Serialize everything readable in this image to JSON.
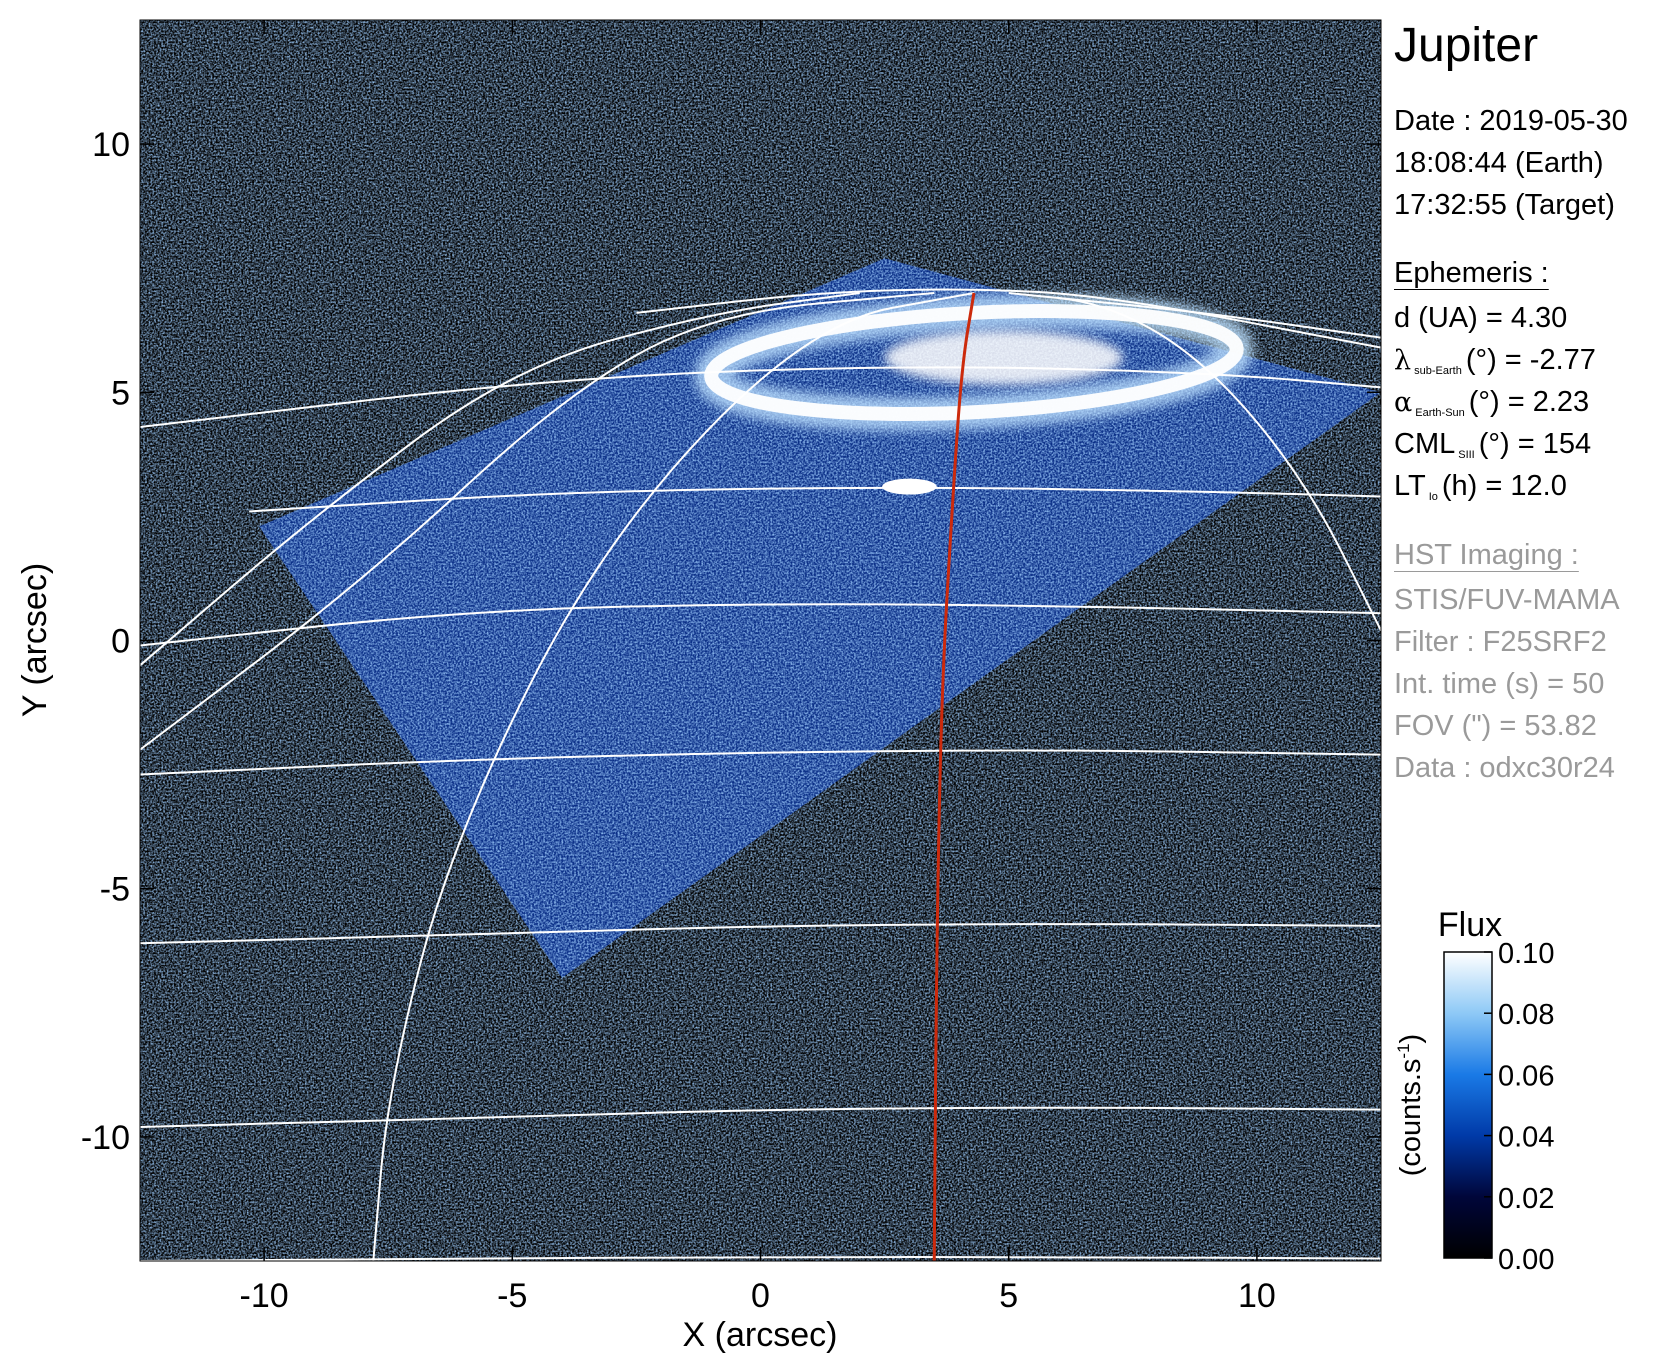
{
  "info": {
    "planet": "Jupiter",
    "date_label": "Date : 2019-05-30",
    "time_earth": "18:08:44 (Earth)",
    "time_target": "17:32:55 (Target)",
    "ephemeris_header": "Ephemeris :",
    "distance": "d (UA)    = 4.30",
    "lambda_symbol": "λ",
    "lambda_sub": "sub-Earth",
    "lambda_rest": "(°) = -2.77",
    "alpha_symbol": "α",
    "alpha_sub": "Earth-Sun",
    "alpha_rest": "(°) = 2.23",
    "cml_main": "CML",
    "cml_sub": "SIII",
    "cml_rest": "(°) = 154",
    "lt_main": "LT",
    "lt_sub": "Io",
    "lt_rest": "(h) = 12.0",
    "hst_header": "HST Imaging :",
    "instrument": "STIS/FUV-MAMA",
    "filter": "Filter : F25SRF2",
    "int_time": "Int. time (s) = 50",
    "fov": "FOV (\") = 53.82",
    "data_id": "Data : odxc30r24"
  },
  "chart_data": {
    "type": "heatmap",
    "title": "",
    "xlabel": "X (arcsec)",
    "ylabel": "Y (arcsec)",
    "xlim": [
      -12.5,
      12.5
    ],
    "ylim": [
      -12.5,
      12.5
    ],
    "xticks": [
      -10,
      -5,
      0,
      5,
      10
    ],
    "yticks": [
      -10,
      -5,
      0,
      5,
      10
    ],
    "grid": false,
    "colorbar": {
      "title": "Flux",
      "label": "(counts.s",
      "label_sup": "-1",
      "label_close": ")",
      "min": 0.0,
      "max": 0.1,
      "ticks": [
        "0.00",
        "0.02",
        "0.04",
        "0.06",
        "0.08",
        "0.10"
      ],
      "colors": [
        "#000000",
        "#00063a",
        "#003aa8",
        "#1a7ae6",
        "#8ec9f6",
        "#ffffff"
      ]
    },
    "overlays": {
      "latitude_gridlines": "white",
      "longitude_gridlines": "white",
      "io_footpath_color": "#cc2a0c"
    },
    "detector_footprint_corners": [
      [
        -10.1,
        2.3
      ],
      [
        2.5,
        7.7
      ],
      [
        12.5,
        5.0
      ],
      [
        -4.0,
        -6.8
      ]
    ],
    "auroral_oval": {
      "center": [
        4.3,
        5.6
      ],
      "semi_axes": [
        5.3,
        1.0
      ],
      "color": "#ffffff"
    },
    "io_footprint_spot": [
      3.0,
      3.1
    ]
  }
}
